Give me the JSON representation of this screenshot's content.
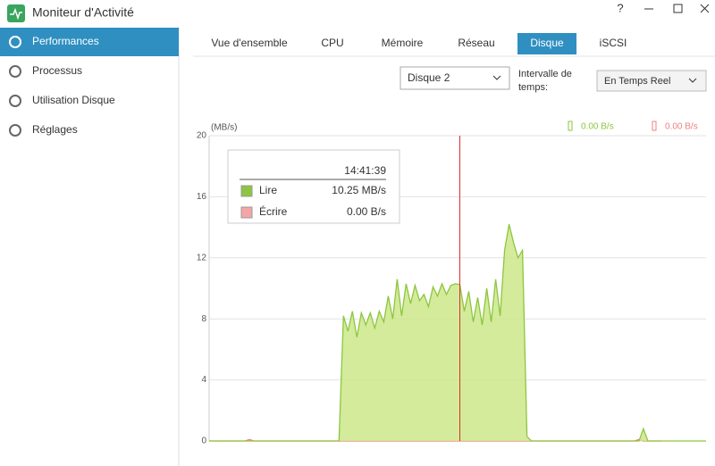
{
  "window": {
    "title": "Moniteur d'Activité",
    "help": "?"
  },
  "sidebar": {
    "items": [
      "Performances",
      "Processus",
      "Utilisation Disque",
      "Réglages"
    ],
    "selected": 0
  },
  "tabs": {
    "items": [
      "Vue d'ensemble",
      "CPU",
      "Mémoire",
      "Réseau",
      "Disque",
      "iSCSI"
    ],
    "selected": 4
  },
  "controls": {
    "disk": "Disque 2",
    "interval_label": "Intervalle de temps:",
    "interval": "En Temps Reel"
  },
  "chart_data": {
    "type": "area",
    "ylabel": "(MB/s)",
    "ylim": [
      0,
      20
    ],
    "yticks": [
      0,
      4,
      8,
      12,
      16,
      20
    ],
    "grid": true,
    "cursor_index": 56,
    "tooltip": {
      "time": "14:41:39",
      "values": [
        "10.25 MB/s",
        "0.00 B/s"
      ]
    },
    "series": [
      {
        "name": "Lire",
        "color": "#8cc63f",
        "fill": "#cde88a",
        "current": "0.00 B/s",
        "values": [
          0,
          0,
          0,
          0,
          0,
          0,
          0,
          0,
          0,
          0,
          0,
          0,
          0,
          0,
          0,
          0,
          0,
          0,
          0,
          0,
          0,
          0,
          0,
          0,
          0,
          0,
          0,
          0,
          0,
          0,
          8.2,
          7.2,
          8.5,
          6.8,
          8.4,
          7.6,
          8.4,
          7.4,
          8.5,
          7.8,
          9.5,
          8.0,
          10.6,
          8.2,
          10.3,
          9.0,
          10.2,
          9.2,
          9.6,
          8.8,
          10.1,
          9.5,
          10.3,
          9.6,
          10.2,
          10.3,
          10.25,
          8.5,
          9.8,
          7.8,
          9.4,
          7.6,
          10.0,
          7.8,
          10.6,
          8.2,
          12.5,
          14.2,
          13.0,
          12.0,
          12.5,
          0.3,
          0,
          0,
          0,
          0,
          0,
          0,
          0,
          0,
          0,
          0,
          0,
          0,
          0,
          0,
          0,
          0,
          0,
          0,
          0,
          0,
          0,
          0,
          0,
          0,
          0,
          0.8,
          0,
          0,
          0,
          0,
          0,
          0,
          0,
          0,
          0,
          0,
          0,
          0,
          0,
          0
        ]
      },
      {
        "name": "Écrire",
        "color": "#f08080",
        "fill": "#f4a6a6",
        "current": "0.00 B/s",
        "values": [
          0,
          0,
          0,
          0,
          0,
          0,
          0,
          0,
          0,
          0.1,
          0,
          0,
          0,
          0,
          0,
          0,
          0,
          0,
          0,
          0,
          0,
          0,
          0,
          0,
          0,
          0,
          0,
          0,
          0,
          0,
          0,
          0,
          0,
          0,
          0,
          0,
          0,
          0,
          0,
          0,
          0,
          0,
          0,
          0,
          0,
          0,
          0,
          0,
          0,
          0,
          0,
          0,
          0,
          0,
          0,
          0,
          0,
          0,
          0,
          0,
          0,
          0,
          0,
          0,
          0,
          0,
          0,
          0,
          0,
          0,
          0,
          0,
          0,
          0,
          0,
          0,
          0,
          0,
          0,
          0,
          0,
          0,
          0,
          0,
          0,
          0,
          0,
          0,
          0,
          0,
          0,
          0,
          0,
          0,
          0,
          0,
          0.1,
          0,
          0,
          0,
          0,
          0
        ]
      }
    ]
  }
}
